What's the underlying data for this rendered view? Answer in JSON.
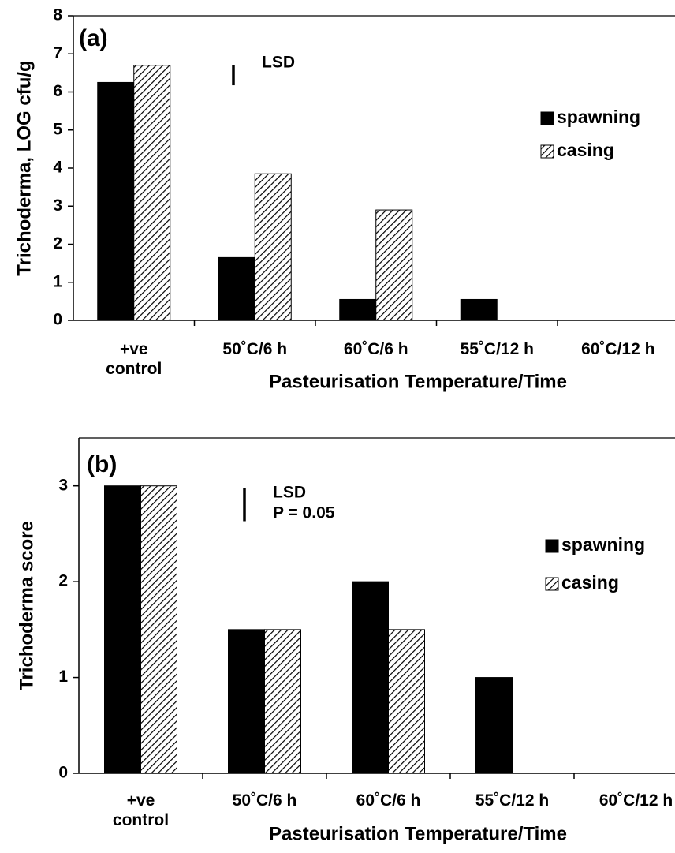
{
  "chart_data": [
    {
      "type": "bar",
      "panel_label": "(a)",
      "y_label": "Trichoderma, LOG cfu/g",
      "x_label": "Pasteurisation Temperature/Time",
      "categories": [
        "+ve\ncontrol",
        "50˚C/6 h",
        "60˚C/6 h",
        "55˚C/12 h",
        "60˚C/12 h"
      ],
      "series": [
        {
          "name": "spawning",
          "color": "#000000",
          "values": [
            6.25,
            1.65,
            0.55,
            0.55,
            0
          ]
        },
        {
          "name": "casing",
          "color": "hatch",
          "values": [
            6.7,
            3.85,
            2.9,
            0,
            0
          ]
        }
      ],
      "ylim": [
        0,
        8
      ],
      "yticks": [
        0,
        1,
        2,
        3,
        4,
        5,
        6,
        7,
        8
      ],
      "annotation": [
        "LSD"
      ],
      "lsd": 0.54,
      "legend": "right"
    },
    {
      "type": "bar",
      "panel_label": "(b)",
      "y_label": "Trichoderma score",
      "x_label": "Pasteurisation Temperature/Time",
      "categories": [
        "+ve\ncontrol",
        "50˚C/6 h",
        "60˚C/6 h",
        "55˚C/12 h",
        "60˚C/12 h"
      ],
      "series": [
        {
          "name": "spawning",
          "color": "#000000",
          "values": [
            3,
            1.5,
            2,
            1,
            0
          ]
        },
        {
          "name": "casing",
          "color": "hatch",
          "values": [
            3,
            1.5,
            1.5,
            0,
            0
          ]
        }
      ],
      "ylim": [
        0,
        3.5
      ],
      "yticks": [
        0,
        1,
        2,
        3
      ],
      "annotation": [
        "LSD",
        "P = 0.05"
      ],
      "lsd": 0.35,
      "legend": "right"
    }
  ]
}
